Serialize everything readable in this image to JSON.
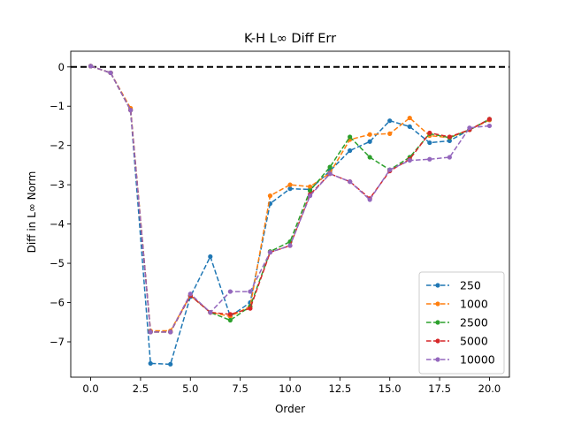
{
  "chart_data": {
    "type": "line",
    "title": "K-H L∞ Diff Err",
    "xlabel": "Order",
    "ylabel": "Diff in L∞ Norm",
    "xlim": [
      -1.0,
      21.0
    ],
    "ylim": [
      -7.9,
      0.4
    ],
    "xticks": [
      0.0,
      2.5,
      5.0,
      7.5,
      10.0,
      12.5,
      15.0,
      17.5,
      20.0
    ],
    "xtick_labels": [
      "0.0",
      "2.5",
      "5.0",
      "7.5",
      "10.0",
      "12.5",
      "15.0",
      "17.5",
      "20.0"
    ],
    "yticks": [
      0,
      -1,
      -2,
      -3,
      -4,
      -5,
      -6,
      -7
    ],
    "ytick_labels": [
      "0",
      "−1",
      "−2",
      "−3",
      "−4",
      "−5",
      "−6",
      "−7"
    ],
    "reference_line": {
      "y": 0,
      "color": "#000000",
      "style": "dashed"
    },
    "legend_position": "lower-right",
    "grid": false,
    "x": [
      0,
      1,
      2,
      3,
      4,
      5,
      6,
      7,
      8,
      9,
      10,
      11,
      12,
      13,
      14,
      15,
      16,
      17,
      18,
      19,
      20
    ],
    "series": [
      {
        "name": "250",
        "color": "#1f77b4",
        "values": [
          0.02,
          -0.15,
          -1.1,
          -7.55,
          -7.57,
          -5.85,
          -4.83,
          -6.35,
          -6.0,
          -3.48,
          -3.1,
          -3.12,
          -2.65,
          -2.13,
          -1.9,
          -1.37,
          -1.52,
          -1.93,
          -1.88,
          -1.6,
          -1.35
        ]
      },
      {
        "name": "1000",
        "color": "#ff7f0e",
        "values": [
          0.02,
          -0.15,
          -1.05,
          -6.72,
          -6.72,
          -5.82,
          -6.25,
          -6.35,
          -6.1,
          -3.28,
          -3.0,
          -3.05,
          -2.7,
          -1.85,
          -1.72,
          -1.7,
          -1.3,
          -1.75,
          -1.8,
          -1.6,
          -1.35
        ]
      },
      {
        "name": "2500",
        "color": "#2ca02c",
        "values": [
          0.02,
          -0.15,
          -1.1,
          -6.75,
          -6.75,
          -5.82,
          -6.25,
          -6.45,
          -6.1,
          -4.7,
          -4.45,
          -3.15,
          -2.55,
          -1.78,
          -2.3,
          -2.62,
          -2.3,
          -1.7,
          -1.8,
          -1.6,
          -1.33
        ]
      },
      {
        "name": "5000",
        "color": "#d62728",
        "values": [
          0.02,
          -0.15,
          -1.1,
          -6.75,
          -6.75,
          -5.82,
          -6.25,
          -6.3,
          -6.15,
          -4.72,
          -4.55,
          -3.25,
          -2.72,
          -2.92,
          -3.35,
          -2.65,
          -2.35,
          -1.68,
          -1.78,
          -1.6,
          -1.33
        ]
      },
      {
        "name": "10000",
        "color": "#9467bd",
        "values": [
          0.02,
          -0.15,
          -1.1,
          -6.75,
          -6.75,
          -5.78,
          -6.25,
          -5.72,
          -5.72,
          -4.72,
          -4.55,
          -3.28,
          -2.72,
          -2.92,
          -3.38,
          -2.62,
          -2.38,
          -2.35,
          -2.3,
          -1.55,
          -1.5
        ]
      }
    ]
  }
}
